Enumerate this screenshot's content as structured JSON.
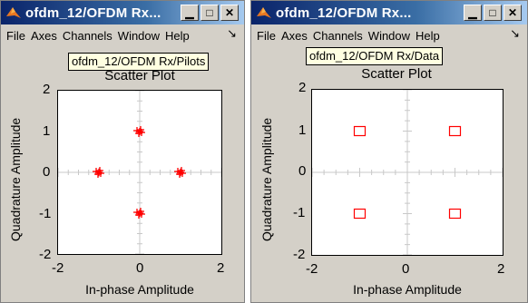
{
  "windows": [
    {
      "title": "ofdm_12/OFDM Rx...",
      "menu": [
        "File",
        "Axes",
        "Channels",
        "Window",
        "Help"
      ],
      "menu_arrow": "↘",
      "tooltip": "ofdm_12/OFDM Rx/Pilots",
      "plot_title": "Scatter Plot",
      "xlabel": "In-phase Amplitude",
      "ylabel": "Quadrature Amplitude",
      "x_ticks": [
        "-2",
        "0",
        "2"
      ],
      "y_ticks": [
        "2",
        "1",
        "0",
        "-1",
        "-2"
      ]
    },
    {
      "title": "ofdm_12/OFDM Rx...",
      "menu": [
        "File",
        "Axes",
        "Channels",
        "Window",
        "Help"
      ],
      "menu_arrow": "↘",
      "tooltip": "ofdm_12/OFDM Rx/Data",
      "plot_title": "Scatter Plot",
      "xlabel": "In-phase Amplitude",
      "ylabel": "Quadrature Amplitude",
      "x_ticks": [
        "-2",
        "0",
        "2"
      ],
      "y_ticks": [
        "2",
        "1",
        "0",
        "-1",
        "-2"
      ]
    }
  ],
  "chart_data": [
    {
      "type": "scatter",
      "title": "Scatter Plot",
      "xlabel": "In-phase Amplitude",
      "ylabel": "Quadrature Amplitude",
      "xlim": [
        -2,
        2
      ],
      "ylim": [
        -2,
        2
      ],
      "marker": "+",
      "color": "#ff0000",
      "points": [
        [
          0,
          1
        ],
        [
          -1,
          0
        ],
        [
          1,
          0
        ],
        [
          0,
          -1
        ]
      ]
    },
    {
      "type": "scatter",
      "title": "Scatter Plot",
      "xlabel": "In-phase Amplitude",
      "ylabel": "Quadrature Amplitude",
      "xlim": [
        -2,
        2
      ],
      "ylim": [
        -2,
        2
      ],
      "marker": "square",
      "color": "#ff0000",
      "points": [
        [
          -1,
          1
        ],
        [
          1,
          1
        ],
        [
          -1,
          -1
        ],
        [
          1,
          -1
        ]
      ]
    }
  ],
  "colors": {
    "marker": "#ff0000",
    "titlebar": "#0a246a",
    "window_bg": "#d4d0c8"
  },
  "icons": {
    "app": "matlab-icon",
    "minimize": "minimize-icon",
    "maximize": "maximize-icon",
    "close": "close-icon"
  }
}
